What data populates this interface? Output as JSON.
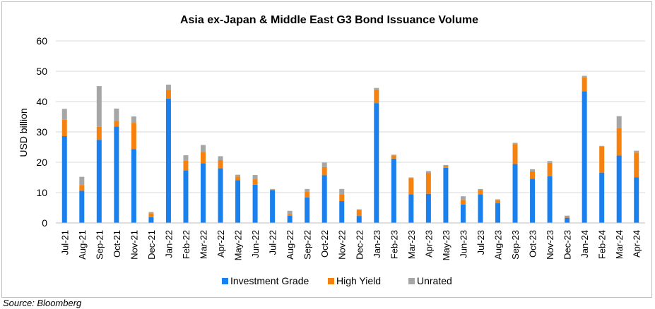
{
  "source_note": "Source: Bloomberg",
  "colors": {
    "investment_grade": "#1a80ee",
    "high_yield": "#f5820f",
    "unrated": "#a6a6a6",
    "gridline": "#d9d9d9"
  },
  "chart_data": {
    "type": "bar",
    "stacked": true,
    "title": "Asia ex-Japan & Middle East G3 Bond Issuance Volume",
    "xlabel": "",
    "ylabel": "USD billion",
    "ylim": [
      0,
      60
    ],
    "yticks": [
      "0",
      "10",
      "20",
      "30",
      "40",
      "50",
      "60"
    ],
    "grid": true,
    "legend_position": "bottom",
    "categories": [
      "Jul-21",
      "Aug-21",
      "Sep-21",
      "Oct-21",
      "Nov-21",
      "Dec-21",
      "Jan-22",
      "Feb-22",
      "Mar-22",
      "Apr-22",
      "May-22",
      "Jun-22",
      "Jul-22",
      "Aug-22",
      "Sep-22",
      "Oct-22",
      "Nov-22",
      "Dec-22",
      "Jan-23",
      "Feb-23",
      "Mar-23",
      "Apr-23",
      "May-23",
      "Jun-23",
      "Jul-23",
      "Aug-23",
      "Sep-23",
      "Oct-23",
      "Nov-23",
      "Dec-23",
      "Jan-24",
      "Feb-24",
      "Mar-24",
      "Apr-24"
    ],
    "series": [
      {
        "name": "Investment Grade",
        "values": [
          28.6,
          10.6,
          27.4,
          31.8,
          24.3,
          1.9,
          41.0,
          17.3,
          19.7,
          18.0,
          14.1,
          12.6,
          10.8,
          2.4,
          8.4,
          15.7,
          7.2,
          2.3,
          39.5,
          21.2,
          9.4,
          9.6,
          18.2,
          6.1,
          9.4,
          6.5,
          19.4,
          14.6,
          15.4,
          1.7,
          43.4,
          16.6,
          22.2,
          15.0
        ]
      },
      {
        "name": "High Yield",
        "values": [
          5.4,
          1.9,
          4.3,
          1.8,
          8.7,
          1.3,
          2.9,
          3.2,
          3.7,
          2.7,
          1.2,
          1.8,
          0.2,
          0.4,
          2.0,
          2.7,
          2.2,
          1.9,
          4.5,
          1.0,
          5.4,
          6.9,
          0.6,
          1.5,
          1.5,
          1.0,
          6.6,
          2.4,
          4.4,
          0.4,
          4.5,
          8.6,
          9.1,
          8.2
        ]
      },
      {
        "name": "Unrated",
        "values": [
          3.6,
          2.7,
          13.4,
          4.1,
          2.1,
          0.4,
          1.7,
          1.8,
          2.3,
          1.3,
          0.6,
          1.4,
          0.2,
          1.2,
          0.8,
          1.5,
          1.8,
          0.3,
          0.5,
          0.3,
          0.2,
          0.6,
          0.3,
          1.2,
          0.3,
          0.3,
          0.4,
          0.7,
          0.6,
          0.3,
          0.6,
          0.2,
          3.9,
          0.6
        ]
      }
    ]
  }
}
